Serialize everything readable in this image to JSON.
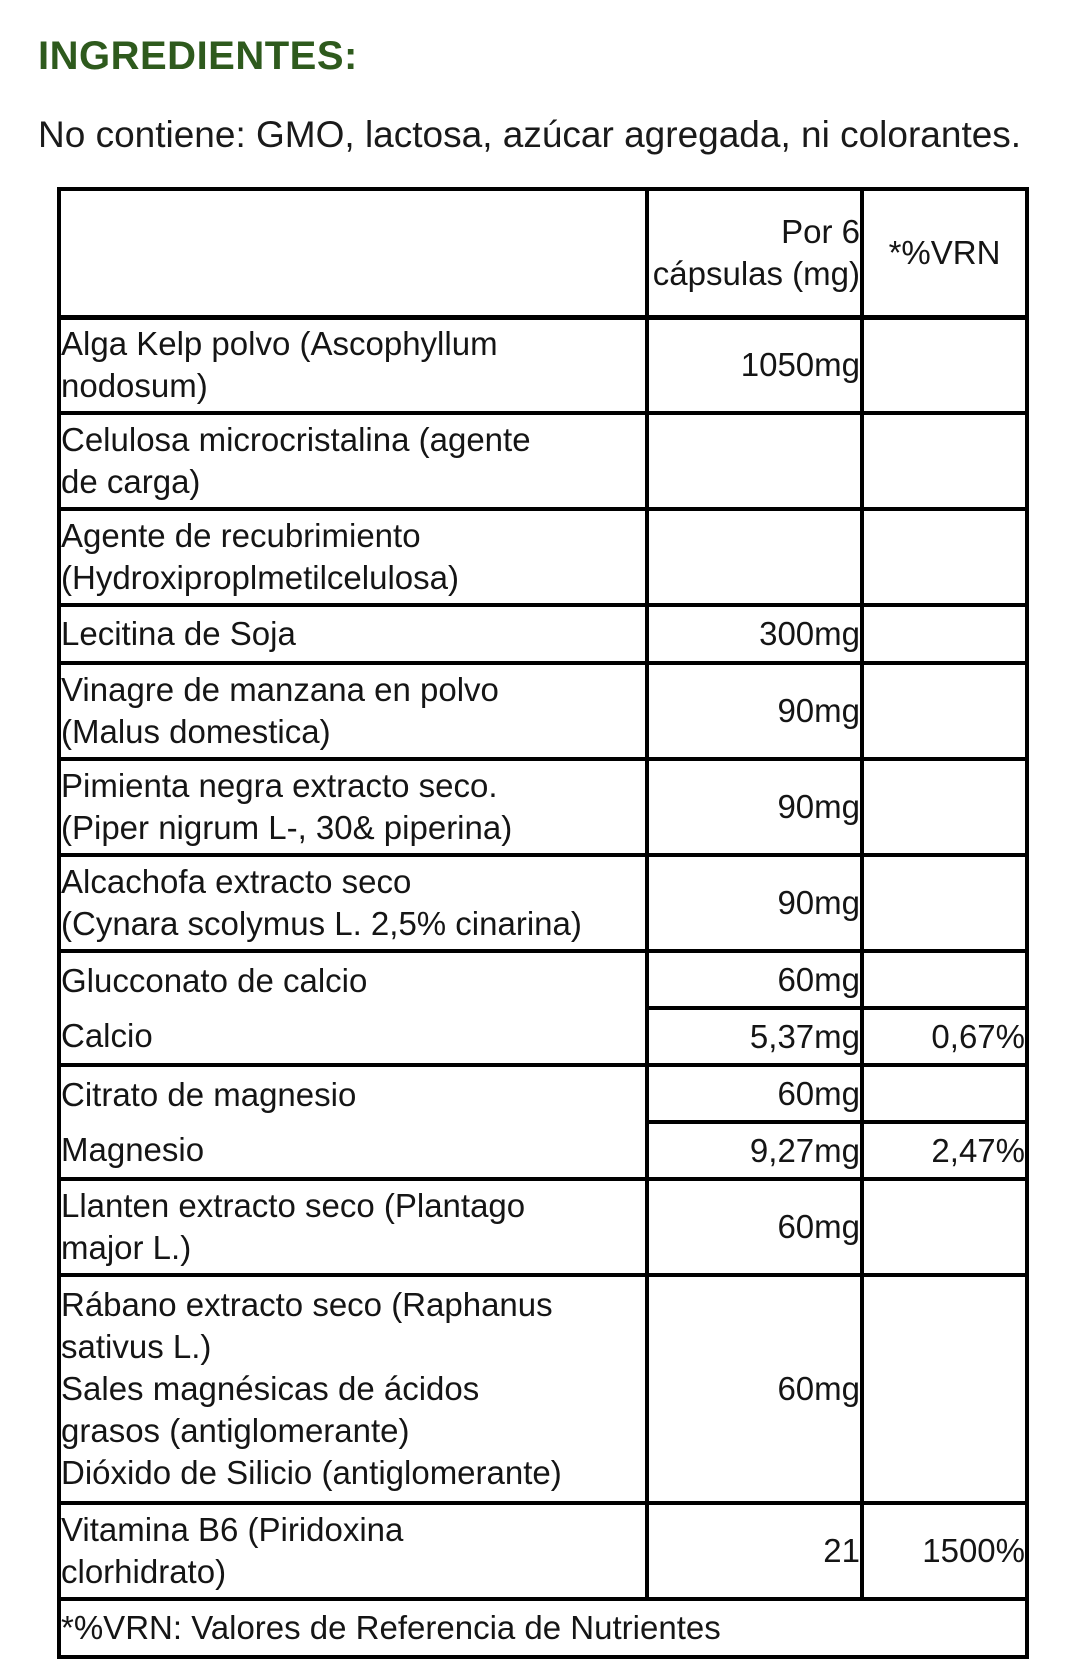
{
  "page": {
    "title": "INGREDIENTES:",
    "title_color": "#2e5a1d",
    "intro": "No contiene: GMO, lactosa, azúcar agregada, ni colorantes."
  },
  "table": {
    "header": {
      "ingredient": "",
      "amount": "Por 6 cápsulas (mg)",
      "vrn": "*%VRN"
    },
    "rows": [
      {
        "name_lines": [
          "Alga Kelp polvo (Ascophyllum",
          "nodosum)"
        ],
        "amount": "1050mg",
        "vrn": ""
      },
      {
        "name_lines": [
          "Celulosa microcristalina (agente",
          "de carga)"
        ],
        "amount": "",
        "vrn": ""
      },
      {
        "name_lines": [
          "Agente de recubrimiento",
          "(Hydroxiproplmetilcelulosa)"
        ],
        "amount": "",
        "vrn": ""
      },
      {
        "name_lines": [
          "Lecitina de Soja"
        ],
        "amount": "300mg",
        "vrn": ""
      },
      {
        "name_lines": [
          "Vinagre de manzana en polvo",
          "(Malus domestica)"
        ],
        "amount": "90mg",
        "vrn": ""
      },
      {
        "name_lines": [
          "Pimienta negra extracto seco.",
          "(Piper nigrum L-, 30& piperina)"
        ],
        "amount": "90mg",
        "vrn": ""
      },
      {
        "name_lines": [
          "Alcachofa extracto seco",
          "(Cynara scolymus L. 2,5% cinarina)"
        ],
        "amount": "90mg",
        "vrn": ""
      },
      {
        "sub_rows": [
          {
            "name": "Glucconato de calcio",
            "amount": "60mg",
            "vrn": ""
          },
          {
            "name": "Calcio",
            "amount": "5,37mg",
            "vrn": "0,67%"
          }
        ]
      },
      {
        "sub_rows": [
          {
            "name": "Citrato de magnesio",
            "amount": "60mg",
            "vrn": ""
          },
          {
            "name": "Magnesio",
            "amount": "9,27mg",
            "vrn": "2,47%"
          }
        ]
      },
      {
        "name_lines": [
          "Llanten extracto seco (Plantago",
          "major L.)"
        ],
        "amount": "60mg",
        "vrn": ""
      },
      {
        "name_lines": [
          "Rábano extracto seco (Raphanus",
          "sativus L.)",
          "Sales magnésicas de ácidos",
          "grasos (antiglomerante)",
          "Dióxido de Silicio (antiglomerante)"
        ],
        "amount": "60mg",
        "vrn": ""
      },
      {
        "name_lines": [
          "Vitamina B6 (Piridoxina",
          "clorhidrato)"
        ],
        "amount": "21",
        "vrn": "1500%"
      }
    ],
    "footnote": "*%VRN: Valores de Referencia de Nutrientes"
  }
}
